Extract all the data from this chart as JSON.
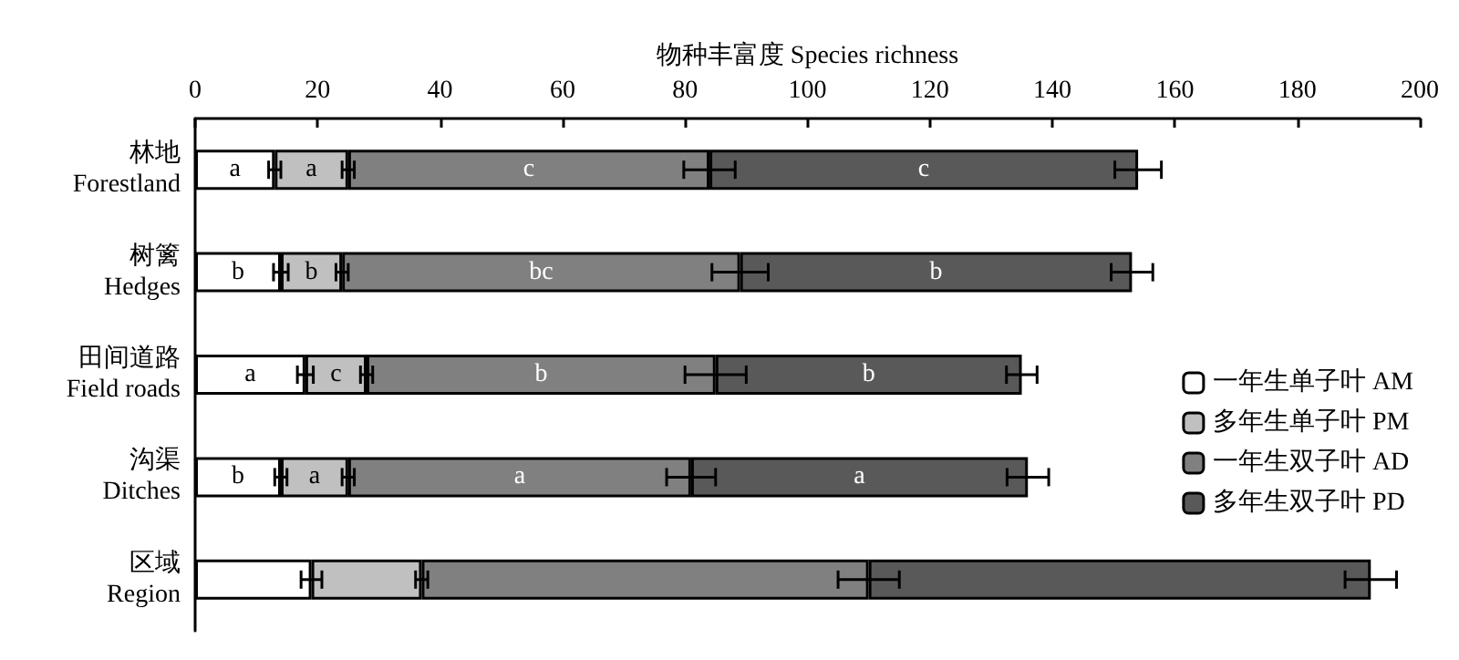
{
  "chart_data": {
    "type": "bar",
    "orientation": "horizontal",
    "stacked": true,
    "xlabel": "物种丰富度 Species richness",
    "categories": [
      "林地\nForestland",
      "树篱\nHedges",
      "田间道路\nField roads",
      "沟渠\nDitches",
      "区域\nRegion"
    ],
    "series": [
      {
        "name": "一年生单子叶 AM",
        "color": "#ffffff",
        "values": [
          13,
          14,
          18,
          14,
          19
        ],
        "errors": [
          1,
          1.2,
          1.3,
          1,
          1.7
        ],
        "value_labels": [
          "a",
          "b",
          "a",
          "b",
          null
        ]
      },
      {
        "name": "多年生单子叶 PM",
        "color": "#c0c0c0",
        "values": [
          12,
          10,
          10,
          11,
          18
        ],
        "errors": [
          1,
          1,
          1,
          1,
          1
        ],
        "value_labels": [
          "a",
          "b",
          "c",
          "a",
          null
        ]
      },
      {
        "name": "一年生双子叶 AD",
        "color": "#808080",
        "values": [
          59,
          65,
          57,
          56,
          73
        ],
        "errors": [
          4.2,
          4.6,
          5,
          4,
          5
        ],
        "value_labels": [
          "c",
          "bc",
          "b",
          "a",
          null
        ]
      },
      {
        "name": "多年生双子叶 PD",
        "color": "#595959",
        "values": [
          70,
          64,
          50,
          55,
          82
        ],
        "errors": [
          3.8,
          3.4,
          2.5,
          3.4,
          4.2
        ],
        "value_labels": [
          "c",
          "b",
          "b",
          "a",
          null
        ]
      }
    ],
    "xlim": [
      0,
      200
    ],
    "xticks": [
      0,
      20,
      40,
      60,
      80,
      100,
      120,
      140,
      160,
      180,
      200
    ],
    "grid": false,
    "legend": "right"
  }
}
